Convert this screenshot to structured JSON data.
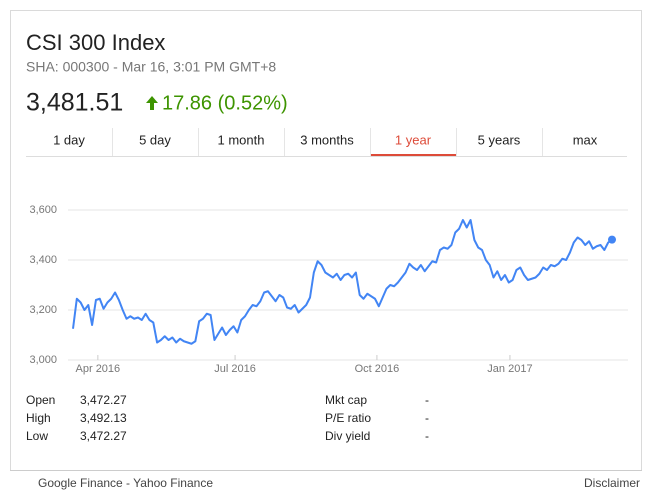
{
  "header": {
    "title": "CSI 300 Index",
    "subtitle": "SHA: 000300 - Mar 16, 3:01 PM GMT+8",
    "price": "3,481.51",
    "change": "17.86 (0.52%)"
  },
  "tabs": [
    "1 day",
    "5 day",
    "1 month",
    "3 months",
    "1 year",
    "5 years",
    "max"
  ],
  "active_tab": 4,
  "chart_data": {
    "type": "line",
    "series": [
      {
        "name": "CSI 300 Index",
        "color": "#4285f4",
        "values": [
          3125,
          3245,
          3230,
          3200,
          3220,
          3140,
          3240,
          3245,
          3205,
          3230,
          3245,
          3270,
          3240,
          3200,
          3165,
          3175,
          3165,
          3170,
          3160,
          3185,
          3160,
          3150,
          3070,
          3080,
          3095,
          3080,
          3090,
          3070,
          3085,
          3075,
          3070,
          3065,
          3075,
          3155,
          3165,
          3185,
          3180,
          3080,
          3105,
          3130,
          3100,
          3120,
          3135,
          3110,
          3160,
          3175,
          3200,
          3220,
          3215,
          3235,
          3270,
          3275,
          3255,
          3235,
          3260,
          3250,
          3210,
          3205,
          3220,
          3190,
          3205,
          3220,
          3250,
          3350,
          3395,
          3380,
          3350,
          3340,
          3330,
          3345,
          3320,
          3340,
          3345,
          3330,
          3350,
          3260,
          3245,
          3265,
          3255,
          3245,
          3215,
          3250,
          3285,
          3300,
          3295,
          3310,
          3330,
          3350,
          3385,
          3370,
          3360,
          3380,
          3355,
          3375,
          3395,
          3390,
          3440,
          3450,
          3445,
          3460,
          3510,
          3525,
          3560,
          3530,
          3560,
          3480,
          3450,
          3440,
          3400,
          3380,
          3330,
          3355,
          3320,
          3340,
          3310,
          3320,
          3360,
          3370,
          3340,
          3320,
          3325,
          3330,
          3345,
          3370,
          3360,
          3380,
          3375,
          3385,
          3405,
          3400,
          3430,
          3470,
          3490,
          3480,
          3460,
          3475,
          3445,
          3455,
          3460,
          3440,
          3470,
          3481.51
        ]
      }
    ],
    "ylim": [
      2960,
      3680
    ],
    "yticks": [
      {
        "value": 3000,
        "label": "3,000"
      },
      {
        "value": 3200,
        "label": "3,200"
      },
      {
        "value": 3400,
        "label": "3,400"
      },
      {
        "value": 3600,
        "label": "3,600"
      }
    ],
    "xticks": [
      {
        "value": 6.5,
        "label": "Apr 2016"
      },
      {
        "value": 42.4,
        "label": "Jul 2016"
      },
      {
        "value": 79.5,
        "label": "Oct 2016"
      },
      {
        "value": 114.3,
        "label": "Jan 2017"
      }
    ],
    "grid": true
  },
  "stats": {
    "left": [
      [
        "Open",
        "3,472.27"
      ],
      [
        "High",
        "3,492.13"
      ],
      [
        "Low",
        "3,472.27"
      ]
    ],
    "right": [
      [
        "Mkt cap",
        "-"
      ],
      [
        "P/E ratio",
        "-"
      ],
      [
        "Div yield",
        "-"
      ]
    ]
  },
  "footer": {
    "sources": "Google Finance - Yahoo Finance",
    "disclaimer": "Disclaimer"
  }
}
